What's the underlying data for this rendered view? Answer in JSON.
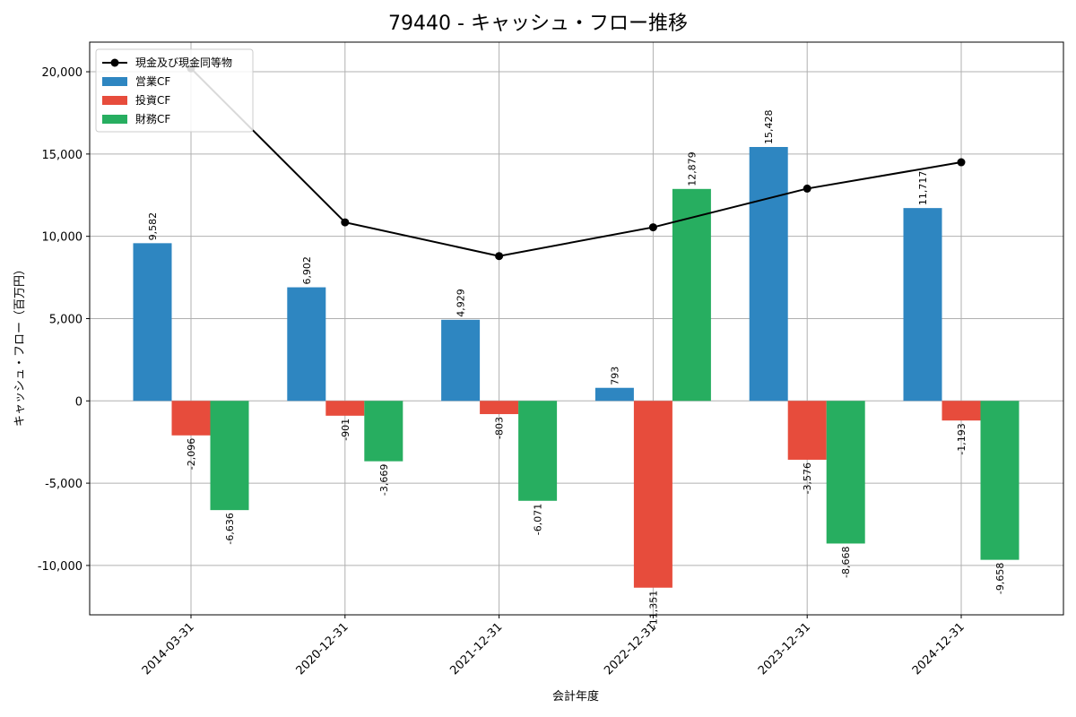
{
  "chart_data": {
    "type": "bar",
    "title": "79440 - キャッシュ・フロー推移",
    "xlabel": "会計年度",
    "ylabel": "キャッシュ・フロー（百万円）",
    "categories": [
      "2014-03-31",
      "2020-12-31",
      "2021-12-31",
      "2022-12-31",
      "2023-12-31",
      "2024-12-31"
    ],
    "ylim": [
      -13000,
      21800
    ],
    "yticks": [
      -10000,
      -5000,
      0,
      5000,
      10000,
      15000,
      20000
    ],
    "ytick_labels": [
      "-10,000",
      "-5,000",
      "0",
      "5,000",
      "10,000",
      "15,000",
      "20,000"
    ],
    "grid": true,
    "legend_position": "top-left",
    "series": [
      {
        "name": "営業CF",
        "type": "bar",
        "color": "#2e86c1",
        "values": [
          9582,
          6902,
          4929,
          793,
          15428,
          11717
        ],
        "labels": [
          "9,582",
          "6,902",
          "4,929",
          "793",
          "15,428",
          "11,717"
        ]
      },
      {
        "name": "投資CF",
        "type": "bar",
        "color": "#e74c3c",
        "values": [
          -2096,
          -901,
          -803,
          -11351,
          -3576,
          -1193
        ],
        "labels": [
          "-2,096",
          "-901",
          "-803",
          "-11,351",
          "-3,576",
          "-1,193"
        ]
      },
      {
        "name": "財務CF",
        "type": "bar",
        "color": "#27ae60",
        "values": [
          -6636,
          -3669,
          -6071,
          12879,
          -8668,
          -9658
        ],
        "labels": [
          "-6,636",
          "-3,669",
          "-6,071",
          "12,879",
          "-8,668",
          "-9,658"
        ]
      },
      {
        "name": "現金及び現金同等物",
        "type": "line",
        "color": "#000000",
        "values": [
          20200,
          10850,
          8800,
          10550,
          12900,
          14500
        ]
      }
    ]
  }
}
